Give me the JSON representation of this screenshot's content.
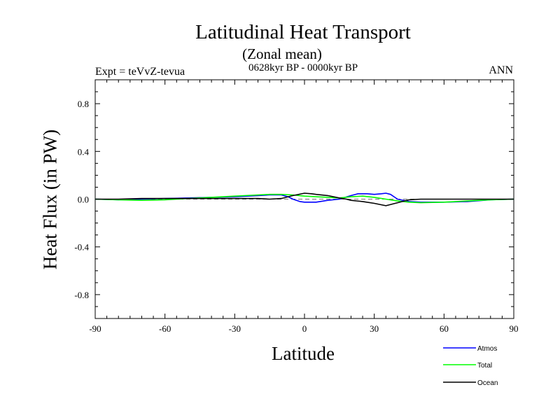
{
  "chart_data": {
    "type": "line",
    "title": "Latitudinal Heat Transport",
    "subtitle": "(Zonal mean)",
    "period": "0628kyr BP - 0000kyr BP",
    "experiment": "Expt = teVvZ-tevua",
    "season": "ANN",
    "xlabel": "Latitude",
    "ylabel": "Heat Flux (in PW)",
    "xlim": [
      -90,
      90
    ],
    "ylim": [
      -1.0,
      1.0
    ],
    "xticks": [
      -90,
      -60,
      -30,
      0,
      30,
      60,
      90
    ],
    "xtick_labels": [
      "-90",
      "-60",
      "-30",
      "0",
      "30",
      "60",
      "90"
    ],
    "yticks": [
      -0.8,
      -0.4,
      0.0,
      0.4,
      0.8
    ],
    "ytick_labels": [
      "-0.8",
      "-0.4",
      "0.0",
      "0.4",
      "0.8"
    ],
    "zero_line": true,
    "series": [
      {
        "name": "Atmos",
        "color": "#0000ff",
        "x": [
          -90,
          -80,
          -70,
          -60,
          -50,
          -40,
          -30,
          -20,
          -15,
          -10,
          -7,
          -5,
          -2,
          0,
          5,
          10,
          15,
          20,
          23,
          27,
          30,
          33,
          35,
          37,
          40,
          45,
          50,
          60,
          70,
          80,
          90
        ],
        "y": [
          0.0,
          -0.005,
          0.0,
          0.005,
          0.01,
          0.015,
          0.02,
          0.03,
          0.035,
          0.035,
          0.02,
          0.0,
          -0.02,
          -0.025,
          -0.025,
          -0.01,
          0.0,
          0.03,
          0.045,
          0.045,
          0.04,
          0.045,
          0.05,
          0.04,
          0.0,
          -0.02,
          -0.025,
          -0.025,
          -0.02,
          -0.005,
          0.0
        ]
      },
      {
        "name": "Total",
        "color": "#00ff00",
        "x": [
          -90,
          -80,
          -70,
          -60,
          -50,
          -40,
          -30,
          -20,
          -15,
          -10,
          -5,
          0,
          5,
          10,
          15,
          20,
          25,
          30,
          35,
          40,
          45,
          50,
          60,
          70,
          80,
          90
        ],
        "y": [
          0.0,
          -0.005,
          -0.01,
          -0.005,
          0.005,
          0.015,
          0.025,
          0.035,
          0.04,
          0.04,
          0.035,
          0.025,
          0.02,
          0.015,
          0.01,
          0.02,
          0.025,
          0.015,
          0.0,
          -0.015,
          -0.025,
          -0.03,
          -0.025,
          -0.015,
          -0.005,
          0.0
        ]
      },
      {
        "name": "Ocean",
        "color": "#000000",
        "x": [
          -90,
          -80,
          -70,
          -60,
          -50,
          -40,
          -30,
          -20,
          -15,
          -10,
          -5,
          0,
          3,
          5,
          10,
          15,
          18,
          20,
          25,
          30,
          35,
          40,
          45,
          50,
          60,
          70,
          80,
          90
        ],
        "y": [
          0.0,
          0.0,
          0.005,
          0.005,
          0.005,
          0.005,
          0.005,
          0.005,
          0.0,
          0.005,
          0.03,
          0.05,
          0.045,
          0.04,
          0.03,
          0.01,
          0.0,
          -0.01,
          -0.02,
          -0.035,
          -0.055,
          -0.03,
          -0.005,
          0.0,
          0.0,
          0.0,
          0.0,
          0.0
        ]
      }
    ],
    "legend": {
      "position": "bottom-right",
      "entries": [
        "Atmos",
        "Total",
        "Ocean"
      ]
    }
  }
}
